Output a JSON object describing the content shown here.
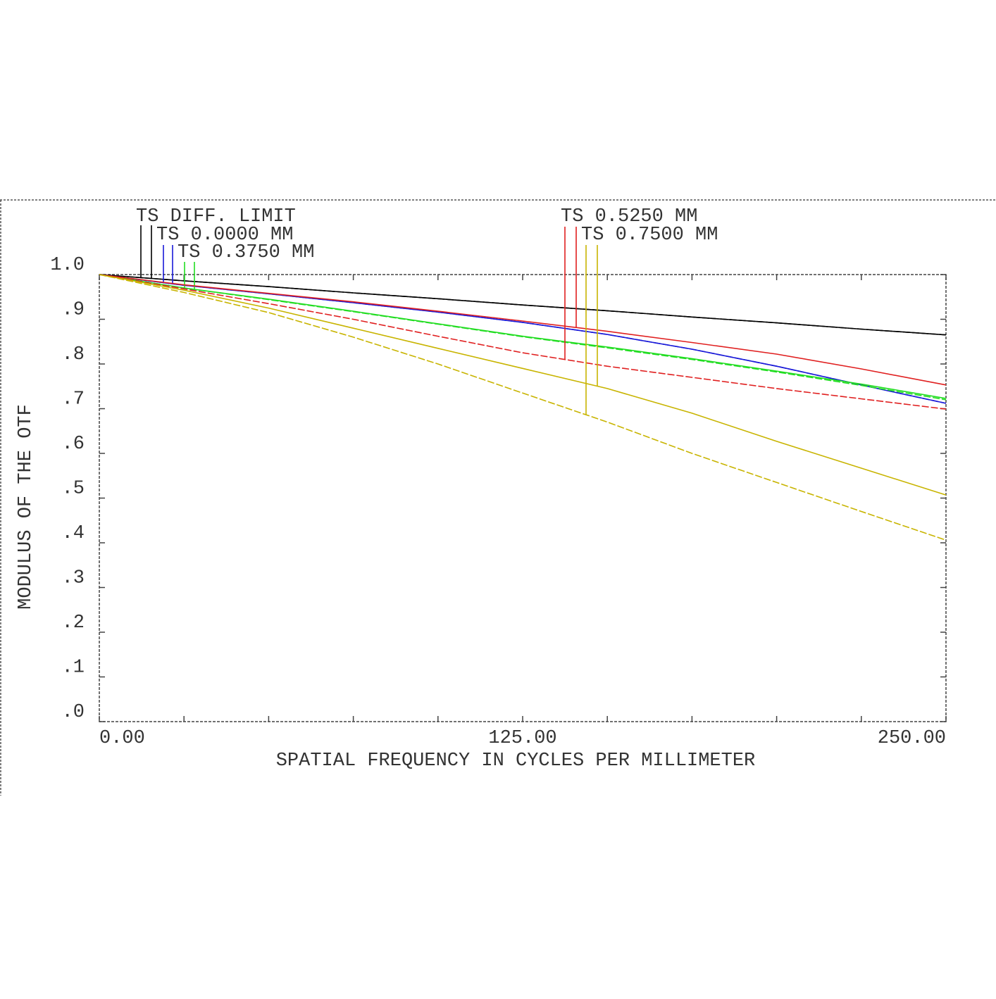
{
  "chart_data": {
    "type": "line",
    "xlabel": "SPATIAL FREQUENCY IN CYCLES PER MILLIMETER",
    "ylabel": "MODULUS OF THE OTF",
    "x": [
      0,
      25,
      50,
      75,
      100,
      125,
      150,
      175,
      200,
      225,
      250
    ],
    "xlim": [
      0,
      250
    ],
    "xticks": [
      {
        "value": 0,
        "label": "0.00"
      },
      {
        "value": 125,
        "label": "125.00"
      },
      {
        "value": 250,
        "label": "250.00"
      }
    ],
    "xminor_ticks": [
      25,
      50,
      75,
      100,
      150,
      175,
      200,
      225
    ],
    "ylim": [
      0,
      1
    ],
    "yticks": [
      {
        "value": 0,
        "label": ".0"
      },
      {
        "value": 0.1,
        "label": ".1"
      },
      {
        "value": 0.2,
        "label": ".2"
      },
      {
        "value": 0.3,
        "label": ".3"
      },
      {
        "value": 0.4,
        "label": ".4"
      },
      {
        "value": 0.5,
        "label": ".5"
      },
      {
        "value": 0.6,
        "label": ".6"
      },
      {
        "value": 0.7,
        "label": ".7"
      },
      {
        "value": 0.8,
        "label": ".8"
      },
      {
        "value": 0.9,
        "label": ".9"
      },
      {
        "value": 1,
        "label": "1.0"
      }
    ],
    "series": [
      {
        "name": "TS DIFF. LIMIT",
        "color": "#000000",
        "tangential": [
          1,
          0.986,
          0.973,
          0.959,
          0.946,
          0.932,
          0.919,
          0.905,
          0.892,
          0.878,
          0.865
        ],
        "sagittal": [
          1,
          0.986,
          0.973,
          0.959,
          0.946,
          0.932,
          0.919,
          0.905,
          0.892,
          0.878,
          0.865
        ]
      },
      {
        "name": "TS 0.0000 MM",
        "color": "#1a1ad8",
        "tangential": [
          1,
          0.976,
          0.957,
          0.937,
          0.916,
          0.893,
          0.866,
          0.833,
          0.795,
          0.753,
          0.712
        ],
        "sagittal": [
          1,
          0.976,
          0.957,
          0.937,
          0.916,
          0.893,
          0.866,
          0.833,
          0.795,
          0.753,
          0.712
        ]
      },
      {
        "name": "TS 0.3750 MM",
        "color": "#22dd22",
        "tangential": [
          1,
          0.97,
          0.945,
          0.918,
          0.89,
          0.862,
          0.838,
          0.812,
          0.784,
          0.755,
          0.723
        ],
        "sagittal": [
          1,
          0.97,
          0.944,
          0.917,
          0.889,
          0.861,
          0.836,
          0.81,
          0.782,
          0.752,
          0.72
        ]
      },
      {
        "name": "TS 0.5250 MM",
        "color": "#e02020",
        "tangential": [
          1,
          0.977,
          0.958,
          0.939,
          0.918,
          0.896,
          0.873,
          0.848,
          0.822,
          0.789,
          0.753
        ],
        "sagittal": [
          1,
          0.968,
          0.935,
          0.9,
          0.862,
          0.825,
          0.795,
          0.77,
          0.745,
          0.722,
          0.699
        ]
      },
      {
        "name": "TS 0.7500 MM",
        "color": "#c8b400",
        "tangential": [
          1,
          0.965,
          0.925,
          0.88,
          0.835,
          0.79,
          0.745,
          0.69,
          0.627,
          0.567,
          0.507
        ],
        "sagittal": [
          1,
          0.96,
          0.915,
          0.86,
          0.8,
          0.735,
          0.67,
          0.6,
          0.535,
          0.47,
          0.406
        ]
      }
    ]
  }
}
